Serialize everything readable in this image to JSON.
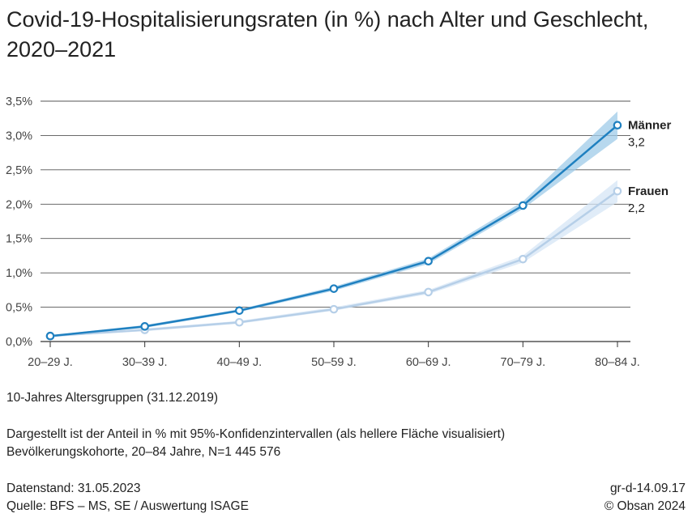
{
  "title": "Covid-19-Hospitalisierungsraten (in %) nach Alter und Geschlecht, 2020–2021",
  "chart_data": {
    "type": "line",
    "categories": [
      "20–29 J.",
      "30–39 J.",
      "40–49 J.",
      "50–59 J.",
      "60–69 J.",
      "70–79 J.",
      "80–84 J."
    ],
    "ylim": [
      0,
      3.5
    ],
    "yticks": [
      0,
      0.5,
      1.0,
      1.5,
      2.0,
      2.5,
      3.0,
      3.5
    ],
    "ytick_labels": [
      "0,0%",
      "0,5%",
      "1,0%",
      "1,5%",
      "2,0%",
      "2,5%",
      "3,0%",
      "3,5%"
    ],
    "grid": true,
    "series": [
      {
        "name": "Männer",
        "end_label": "3,2",
        "color": "#1f80c0",
        "band_color": "#9fcbe8",
        "values": [
          0.08,
          0.22,
          0.45,
          0.77,
          1.17,
          1.98,
          3.15
        ],
        "ci_low": [
          0.07,
          0.2,
          0.43,
          0.74,
          1.13,
          1.93,
          2.95
        ],
        "ci_high": [
          0.09,
          0.24,
          0.47,
          0.8,
          1.21,
          2.04,
          3.35
        ]
      },
      {
        "name": "Frauen",
        "end_label": "2,2",
        "color": "#b6cfe8",
        "band_color": "#d6e6f5",
        "values": [
          0.08,
          0.17,
          0.28,
          0.47,
          0.72,
          1.2,
          2.19
        ],
        "ci_low": [
          0.07,
          0.15,
          0.26,
          0.45,
          0.69,
          1.15,
          2.03
        ],
        "ci_high": [
          0.09,
          0.19,
          0.3,
          0.5,
          0.75,
          1.25,
          2.35
        ]
      }
    ]
  },
  "notes": {
    "age_group": "10-Jahres Altersgruppen (31.12.2019)",
    "description_1": "Dargestellt ist der Anteil in % mit 95%-Konfidenzintervallen (als hellere Fläche visualisiert)",
    "description_2": "Bevölkerungskohorte, 20–84 Jahre, N=1 445 576",
    "date": "Datenstand: 31.05.2023",
    "source": "Quelle: BFS – MS, SE / Auswertung ISAGE",
    "id": "gr-d-14.09.17",
    "copyright": "© Obsan 2024"
  }
}
